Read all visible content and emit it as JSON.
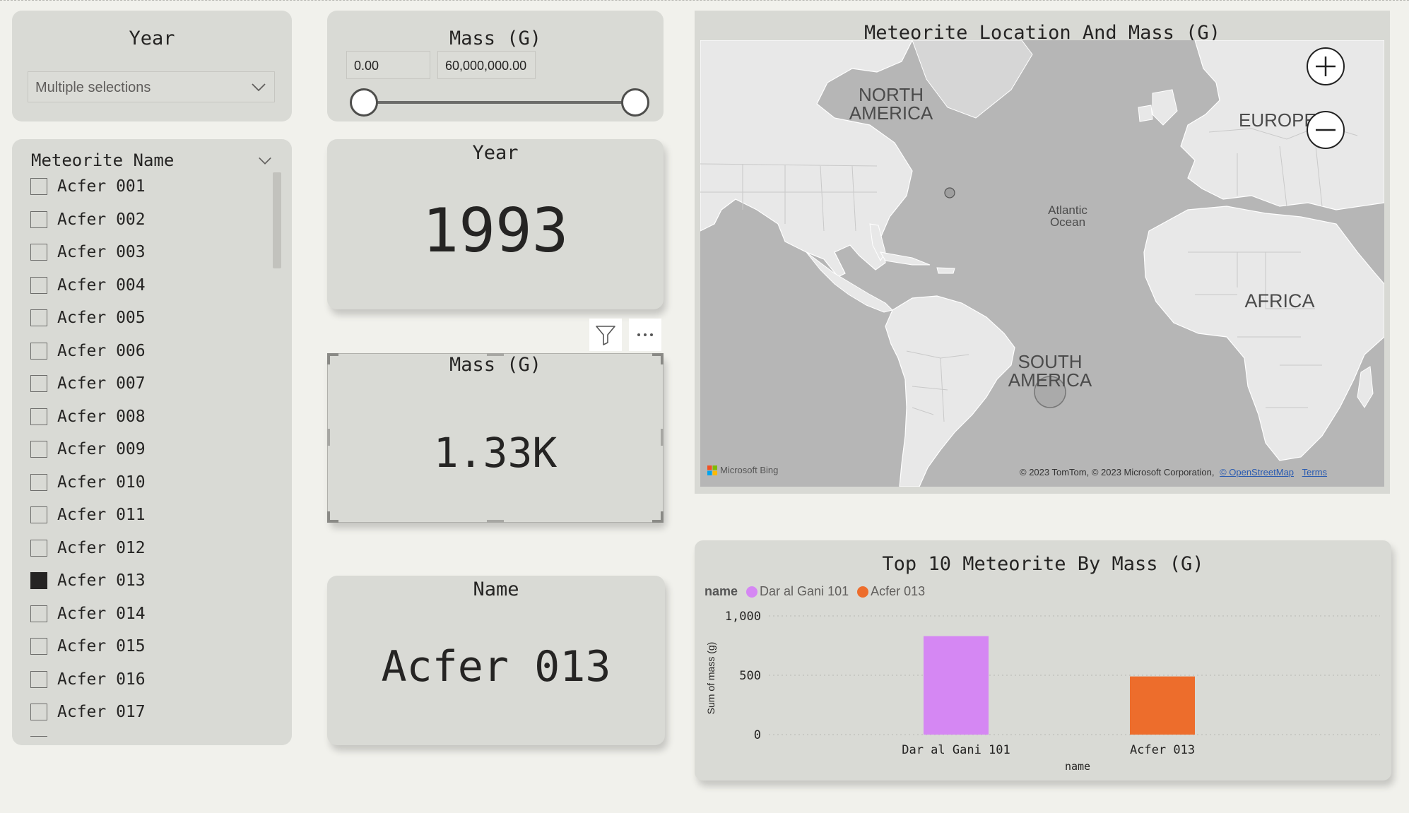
{
  "year_slicer": {
    "title": "Year",
    "dropdown_value": "Multiple selections"
  },
  "mass_slicer": {
    "title": "Mass (G)",
    "min_value": "0.00",
    "max_value": "60,000,000.00",
    "range_fraction": [
      0.0,
      1.0
    ]
  },
  "name_slicer": {
    "header": "Meteorite Name",
    "items": [
      {
        "label": "Acfer 001",
        "checked": false
      },
      {
        "label": "Acfer 002",
        "checked": false
      },
      {
        "label": "Acfer 003",
        "checked": false
      },
      {
        "label": "Acfer 004",
        "checked": false
      },
      {
        "label": "Acfer 005",
        "checked": false
      },
      {
        "label": "Acfer 006",
        "checked": false
      },
      {
        "label": "Acfer 007",
        "checked": false
      },
      {
        "label": "Acfer 008",
        "checked": false
      },
      {
        "label": "Acfer 009",
        "checked": false
      },
      {
        "label": "Acfer 010",
        "checked": false
      },
      {
        "label": "Acfer 011",
        "checked": false
      },
      {
        "label": "Acfer 012",
        "checked": false
      },
      {
        "label": "Acfer 013",
        "checked": true
      },
      {
        "label": "Acfer 014",
        "checked": false
      },
      {
        "label": "Acfer 015",
        "checked": false
      },
      {
        "label": "Acfer 016",
        "checked": false
      },
      {
        "label": "Acfer 017",
        "checked": false
      }
    ]
  },
  "kpi_year": {
    "title": "Year",
    "value": "1993"
  },
  "kpi_mass": {
    "title": "Mass (G)",
    "value": "1.33K"
  },
  "kpi_name": {
    "title": "Name",
    "value": "Acfer 013"
  },
  "map": {
    "title": "Meteorite Location And Mass (G)",
    "labels": {
      "north_america": "NORTH AMERICA",
      "europe": "EUROPE",
      "atlantic": "Atlantic Ocean",
      "africa": "AFRICA",
      "south_america": "SOUTH AMERICA"
    },
    "brand": "Microsoft Bing",
    "copyright": "© 2023 TomTom, © 2023 Microsoft Corporation,",
    "osm_link": "© OpenStreetMap",
    "terms_link": "Terms"
  },
  "chart": {
    "title": "Top 10 Meteorite By Mass (G)",
    "legend_title": "name",
    "colors": [
      "#d587f3",
      "#ed6d2c"
    ]
  },
  "chart_data": {
    "type": "bar",
    "title": "Top 10 Meteorite By Mass (G)",
    "categories": [
      "Dar al Gani 101",
      "Acfer 013"
    ],
    "series": [
      {
        "name": "Sum of mass (g)",
        "values": [
          830,
          490
        ]
      }
    ],
    "xlabel": "name",
    "ylabel": "Sum of mass (g)",
    "ylim": [
      0,
      1000
    ],
    "yticks": [
      "0",
      "500",
      "1,000"
    ],
    "yticks_values": [
      0,
      500,
      1000
    ],
    "legend": [
      "Dar al Gani 101",
      "Acfer 013"
    ],
    "legend_position": "top-left",
    "grid": true
  }
}
